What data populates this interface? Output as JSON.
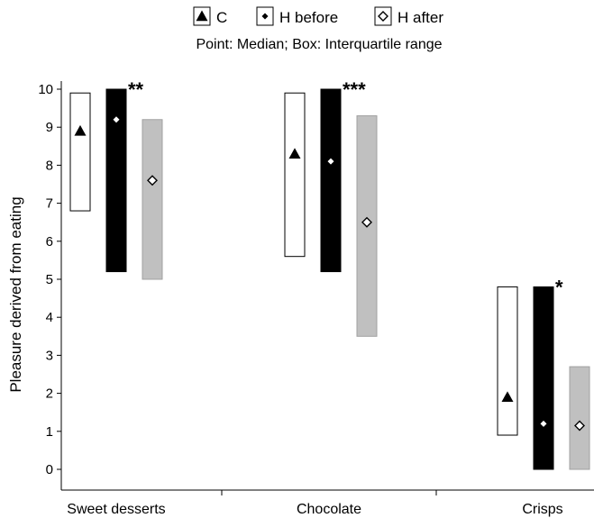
{
  "chart_data": {
    "type": "boxplot",
    "subtitle": "Point: Median;   Box: Interquartile range",
    "ylabel": "Pleasure derived from eating",
    "ylim": [
      0,
      10
    ],
    "yticks": [
      "0",
      "1",
      "2",
      "3",
      "4",
      "5",
      "6",
      "7",
      "8",
      "9",
      "10"
    ],
    "categories": [
      "Sweet desserts",
      "Chocolate",
      "Crisps"
    ],
    "series": [
      {
        "name": "C",
        "fill": "#ffffff",
        "stroke": "#000000",
        "marker": "triangle",
        "marker_fill": "#000000",
        "boxes": [
          {
            "q1": 6.8,
            "q3": 9.9,
            "median": 8.9
          },
          {
            "q1": 5.6,
            "q3": 9.9,
            "median": 8.3
          },
          {
            "q1": 0.9,
            "q3": 4.8,
            "median": 1.9
          }
        ]
      },
      {
        "name": "H before",
        "fill": "#000000",
        "stroke": "#000000",
        "marker": "diamond",
        "marker_fill": "#ffffff",
        "boxes": [
          {
            "q1": 5.2,
            "q3": 10.0,
            "median": 9.2
          },
          {
            "q1": 5.2,
            "q3": 10.0,
            "median": 8.1
          },
          {
            "q1": 0.0,
            "q3": 4.8,
            "median": 1.2
          }
        ]
      },
      {
        "name": "H after",
        "fill": "#c0c0c0",
        "stroke": "#a0a0a0",
        "marker": "diamond-open",
        "marker_fill": "#ffffff",
        "boxes": [
          {
            "q1": 5.0,
            "q3": 9.2,
            "median": 7.6
          },
          {
            "q1": 3.5,
            "q3": 9.3,
            "median": 6.5
          },
          {
            "q1": 0.0,
            "q3": 2.7,
            "median": 1.15
          }
        ]
      }
    ],
    "significance": [
      "**",
      "***",
      "*"
    ],
    "legend_position": "top"
  }
}
